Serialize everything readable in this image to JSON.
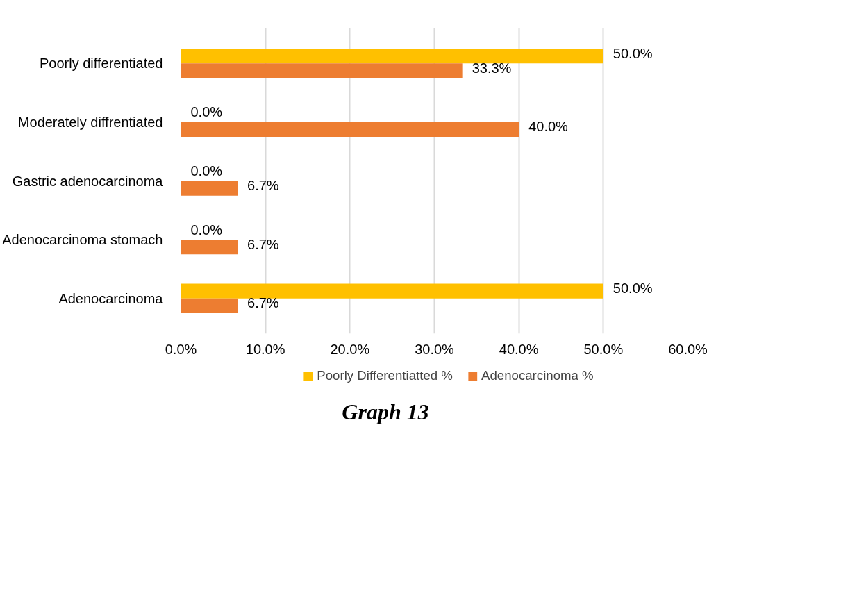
{
  "chart_data": {
    "type": "bar",
    "orientation": "horizontal",
    "categories": [
      "Poorly differentiated",
      "Moderately diffrentiated",
      "Gastric adenocarcinoma",
      "Adenocarcinoma stomach",
      "Adenocarcinoma"
    ],
    "series": [
      {
        "name": "Poorly Differentiatted %",
        "color": "#ffc000",
        "values": [
          50.0,
          0.0,
          0.0,
          0.0,
          50.0
        ],
        "value_labels": [
          "50.0%",
          "0.0%",
          "0.0%",
          "0.0%",
          "50.0%"
        ]
      },
      {
        "name": "Adenocarcinoma %",
        "color": "#ed7d31",
        "values": [
          33.3,
          40.0,
          6.7,
          6.7,
          6.7
        ],
        "value_labels": [
          "33.3%",
          "40.0%",
          "6.7%",
          "6.7%",
          "6.7%"
        ]
      }
    ],
    "xlim": [
      0,
      60
    ],
    "xticks": [
      {
        "value": 0,
        "label": "0.0%"
      },
      {
        "value": 10,
        "label": "10.0%"
      },
      {
        "value": 20,
        "label": "20.0%"
      },
      {
        "value": 30,
        "label": "30.0%"
      },
      {
        "value": 40,
        "label": "40.0%"
      },
      {
        "value": 50,
        "label": "50.0%"
      },
      {
        "value": 60,
        "label": "60.0%"
      }
    ],
    "grid": "x",
    "legend": "bottom",
    "annotations": [
      "Graph 13"
    ]
  }
}
